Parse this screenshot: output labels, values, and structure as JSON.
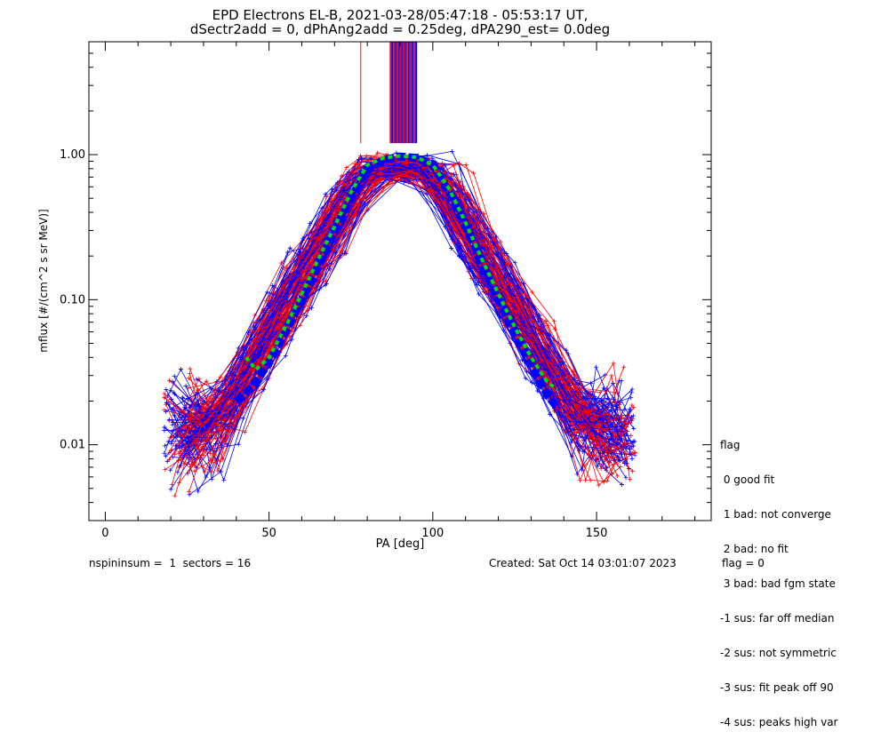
{
  "chart_data": {
    "type": "line",
    "title": "EPD Electrons EL-B, 2021-03-28/05:47:18 - 05:53:17 UT,",
    "subtitle": "dSectr2add = 0, dPhAng2add = 0.25deg, dPA290_est=   0.0deg",
    "xlabel": "PA [deg]",
    "ylabel": "mflux [#/(cm^2 s sr MeV)]",
    "xlim": [
      -5,
      185
    ],
    "ylim": [
      0.003,
      6.0
    ],
    "yscale": "log",
    "xticks": [
      0,
      50,
      100,
      150
    ],
    "yticks": [
      0.01,
      0.1,
      1.0
    ],
    "ytick_labels": [
      "0.01",
      "0.10",
      "1.00"
    ],
    "grid": false,
    "series": [
      {
        "color": "#0000ff",
        "style": "thick dashed",
        "x": [
          40,
          45,
          50,
          55,
          60,
          65,
          70,
          75,
          80,
          85,
          90,
          95,
          100,
          105,
          110,
          115,
          120,
          125,
          130,
          135,
          138
        ],
        "values": [
          0.02,
          0.025,
          0.037,
          0.06,
          0.1,
          0.17,
          0.3,
          0.5,
          0.8,
          0.92,
          0.97,
          0.95,
          0.85,
          0.55,
          0.32,
          0.18,
          0.1,
          0.06,
          0.035,
          0.022,
          0.018
        ]
      },
      {
        "color": "#00dd00",
        "style": "thick dotted",
        "x": [
          43,
          46,
          50,
          55,
          60,
          65,
          70,
          75,
          80,
          85,
          90,
          95,
          100,
          105,
          110,
          115,
          120,
          125,
          130,
          135,
          138
        ],
        "values": [
          0.04,
          0.033,
          0.04,
          0.065,
          0.11,
          0.19,
          0.32,
          0.55,
          0.85,
          0.95,
          0.98,
          0.96,
          0.85,
          0.58,
          0.34,
          0.19,
          0.11,
          0.065,
          0.04,
          0.027,
          0.024
        ]
      }
    ],
    "legend": {
      "title": "flag",
      "entries": [
        " 0 good fit",
        " 1 bad: not converge",
        " 2 bad: no fit",
        " 3 bad: bad fgm state",
        "-1 sus: far off median",
        "-2 sus: not symmetric",
        "-3 sus: fit peak off 90",
        "-4 sus: peaks high var"
      ]
    }
  },
  "footer": {
    "left": "nspininsum =  1  sectors = 16",
    "created": "Created: Sat Oct 14 03:01:07 2023",
    "flag": "flag = 0"
  }
}
